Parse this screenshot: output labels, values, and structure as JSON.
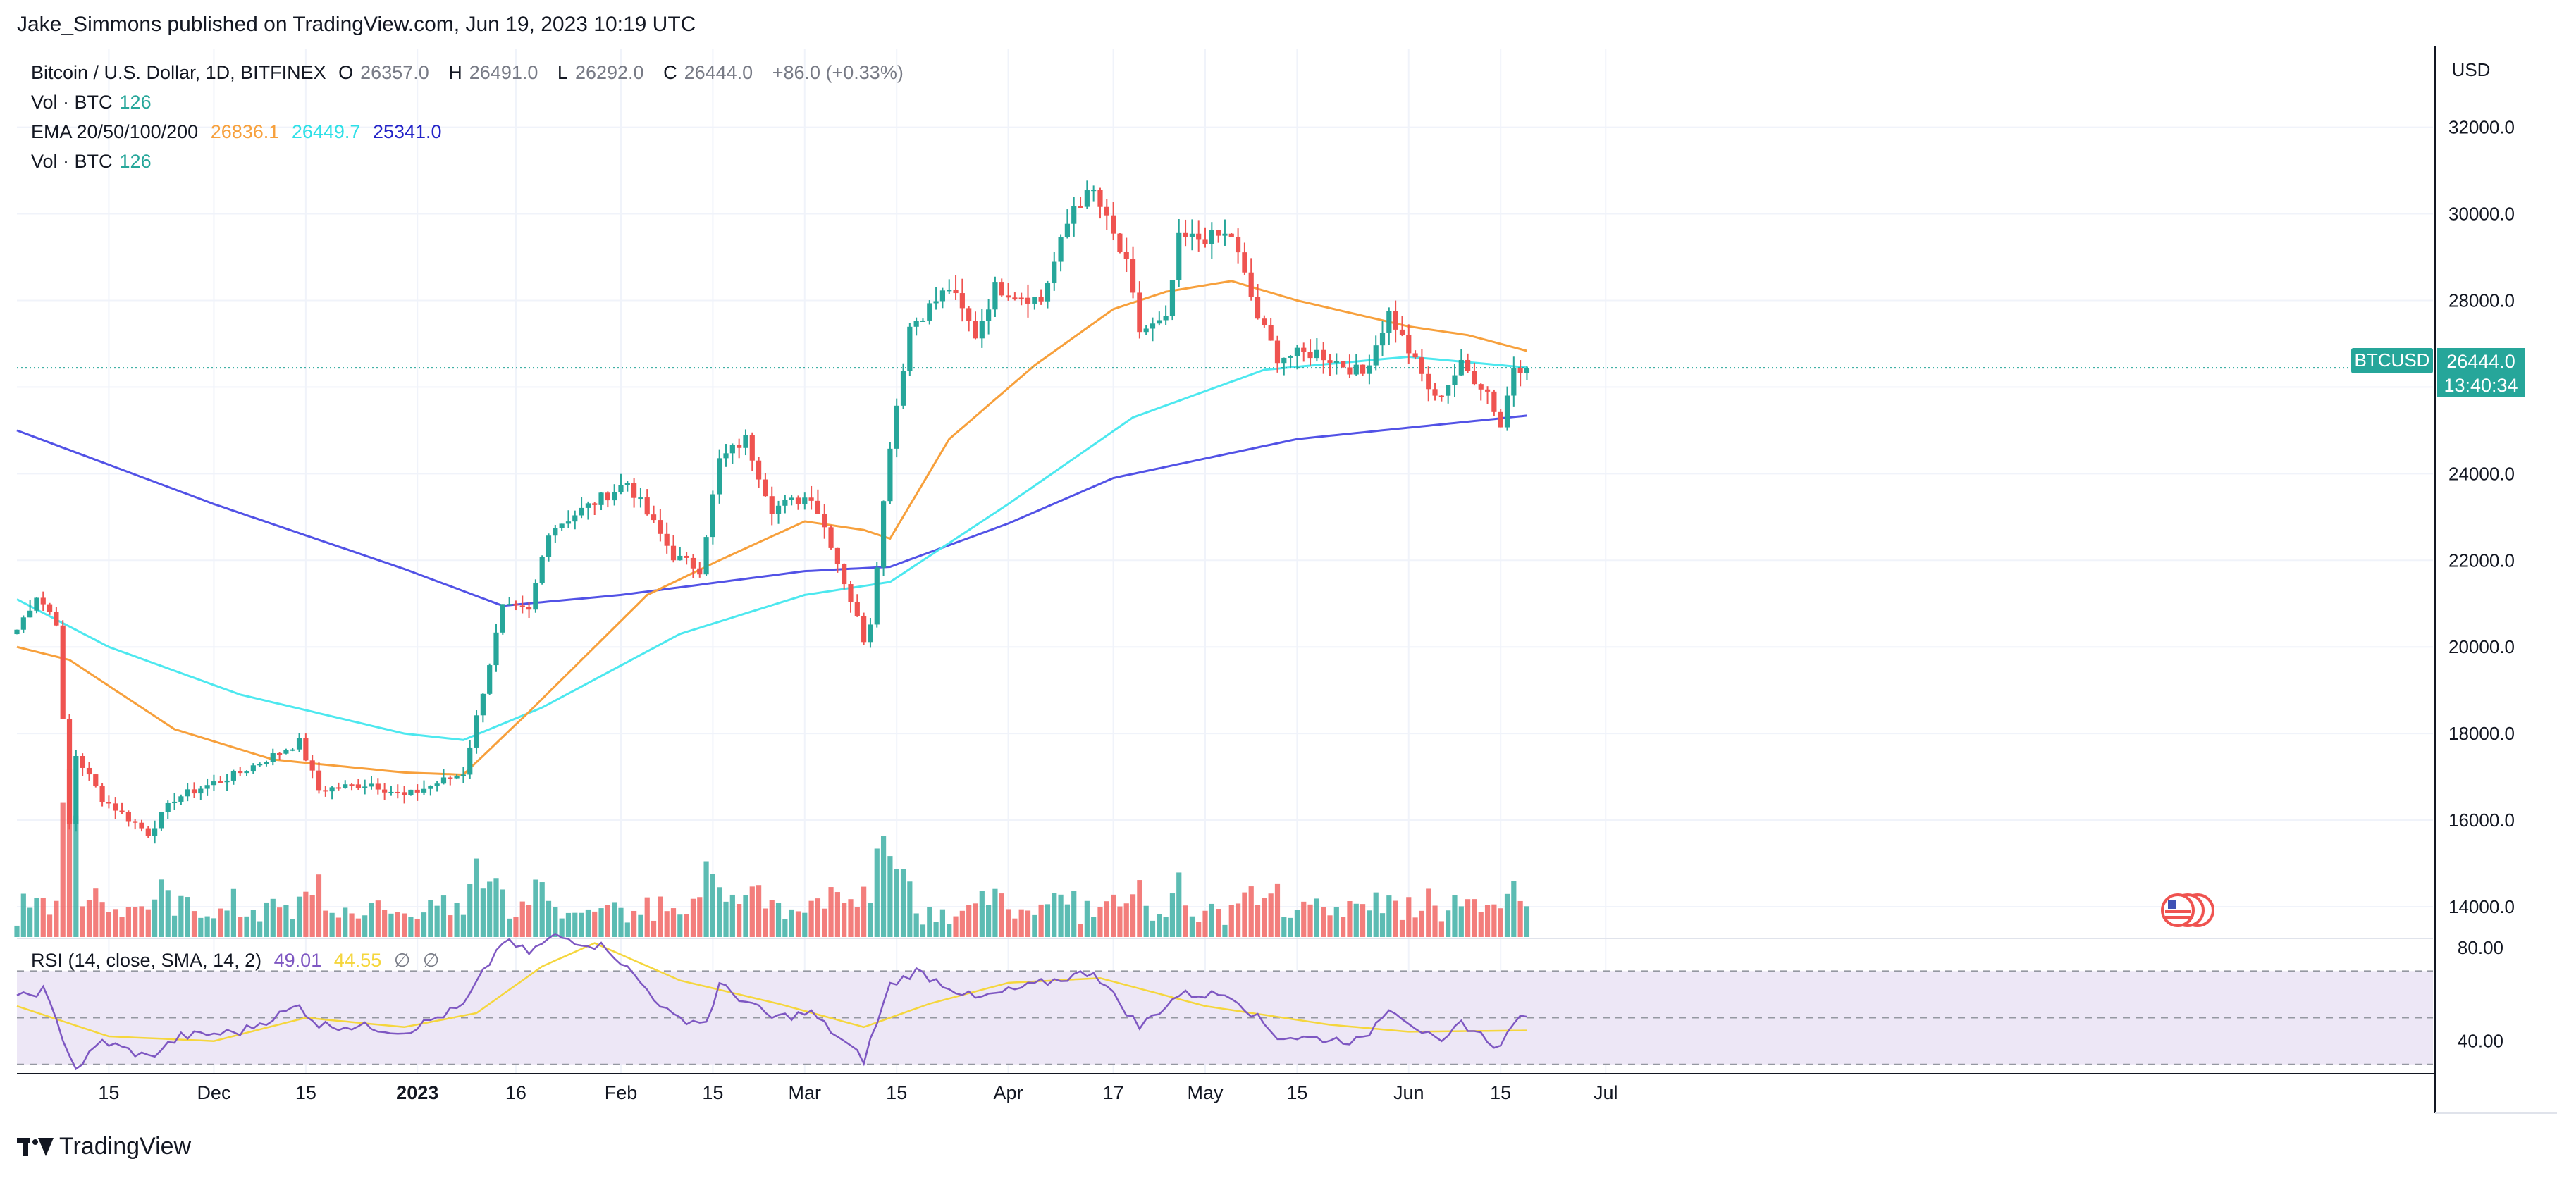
{
  "publisher_line": "Jake_Simmons published on TradingView.com, Jun 19, 2023 10:19 UTC",
  "legend": {
    "symbol": "Bitcoin / U.S. Dollar, 1D, BITFINEX",
    "ohlc": [
      {
        "k": "O",
        "v": "26357.0"
      },
      {
        "k": "H",
        "v": "26491.0"
      },
      {
        "k": "L",
        "v": "26292.0"
      },
      {
        "k": "C",
        "v": "26444.0"
      }
    ],
    "change": "+86.0 (+0.33%)",
    "vol_label": "Vol · BTC",
    "vol_value": "126",
    "ema_label": "EMA 20/50/100/200",
    "ema_values": [
      "26836.1",
      "26449.7",
      "25341.0"
    ],
    "vol2_label": "Vol · BTC",
    "vol2_value": "126"
  },
  "rsi_legend": {
    "label": "RSI (14, close, SMA, 14, 2)",
    "rsi": "49.01",
    "sma": "44.55",
    "na1": "∅",
    "na2": "∅"
  },
  "price_badge": {
    "symbol": "BTCUSD",
    "price": "26444.0",
    "countdown": "13:40:34"
  },
  "footer_brand": "TradingView",
  "colors": {
    "up": "#26a69a",
    "down": "#ef5350",
    "ema20": "#f7a03c",
    "ema50": "#4de8ef",
    "ema200": "#5252e6",
    "rsi": "#7e57c2",
    "rsi_sma": "#f5d63d",
    "rsi_band": "#ede7f6"
  },
  "chart_data": {
    "type": "candlestick",
    "title": "Bitcoin / U.S. Dollar, 1D, BITFINEX",
    "y_axis": {
      "unit": "USD",
      "ticks": [
        14000,
        16000,
        18000,
        20000,
        22000,
        24000,
        26000,
        28000,
        30000,
        32000
      ],
      "tick_labels": [
        "14000.0",
        "16000.0",
        "18000.0",
        "20000.0",
        "22000.0",
        "24000.0",
        "26000.0",
        "28000.0",
        "30000.0",
        "32000.0"
      ],
      "range": [
        13300,
        33800
      ]
    },
    "x_axis": {
      "start_date": "2022-11-01",
      "labels": [
        {
          "date": "2022-11-15",
          "text": "15"
        },
        {
          "date": "2022-12-01",
          "text": "Dec"
        },
        {
          "date": "2022-12-15",
          "text": "15"
        },
        {
          "date": "2023-01-01",
          "text": "2023"
        },
        {
          "date": "2023-01-16",
          "text": "16"
        },
        {
          "date": "2023-02-01",
          "text": "Feb"
        },
        {
          "date": "2023-02-15",
          "text": "15"
        },
        {
          "date": "2023-03-01",
          "text": "Mar"
        },
        {
          "date": "2023-03-15",
          "text": "15"
        },
        {
          "date": "2023-04-01",
          "text": "Apr"
        },
        {
          "date": "2023-04-17",
          "text": "17"
        },
        {
          "date": "2023-05-01",
          "text": "May"
        },
        {
          "date": "2023-05-15",
          "text": "15"
        },
        {
          "date": "2023-06-01",
          "text": "Jun"
        },
        {
          "date": "2023-06-15",
          "text": "15"
        },
        {
          "date": "2023-07-01",
          "text": "Jul"
        }
      ]
    },
    "price_keypoints": [
      {
        "date": "2022-11-01",
        "close": 20400
      },
      {
        "date": "2022-11-04",
        "close": 21200
      },
      {
        "date": "2022-11-07",
        "close": 20600
      },
      {
        "date": "2022-11-09",
        "close": 15900
      },
      {
        "date": "2022-11-10",
        "close": 17500
      },
      {
        "date": "2022-11-14",
        "close": 16500
      },
      {
        "date": "2022-11-21",
        "close": 15700
      },
      {
        "date": "2022-11-25",
        "close": 16500
      },
      {
        "date": "2022-12-05",
        "close": 17100
      },
      {
        "date": "2022-12-14",
        "close": 17800
      },
      {
        "date": "2022-12-17",
        "close": 16700
      },
      {
        "date": "2022-12-25",
        "close": 16850
      },
      {
        "date": "2022-12-30",
        "close": 16550
      },
      {
        "date": "2023-01-08",
        "close": 17100
      },
      {
        "date": "2023-01-14",
        "close": 20900
      },
      {
        "date": "2023-01-18",
        "close": 20800
      },
      {
        "date": "2023-01-21",
        "close": 22700
      },
      {
        "date": "2023-02-02",
        "close": 23800
      },
      {
        "date": "2023-02-09",
        "close": 22100
      },
      {
        "date": "2023-02-13",
        "close": 21800
      },
      {
        "date": "2023-02-16",
        "close": 24300
      },
      {
        "date": "2023-02-20",
        "close": 24800
      },
      {
        "date": "2023-02-24",
        "close": 23200
      },
      {
        "date": "2023-03-02",
        "close": 23500
      },
      {
        "date": "2023-03-05",
        "close": 22400
      },
      {
        "date": "2023-03-10",
        "close": 20200
      },
      {
        "date": "2023-03-11",
        "close": 20600
      },
      {
        "date": "2023-03-14",
        "close": 24700
      },
      {
        "date": "2023-03-17",
        "close": 27400
      },
      {
        "date": "2023-03-23",
        "close": 28300
      },
      {
        "date": "2023-03-27",
        "close": 27200
      },
      {
        "date": "2023-03-30",
        "close": 28300
      },
      {
        "date": "2023-04-06",
        "close": 28000
      },
      {
        "date": "2023-04-11",
        "close": 30200
      },
      {
        "date": "2023-04-14",
        "close": 30500
      },
      {
        "date": "2023-04-19",
        "close": 28800
      },
      {
        "date": "2023-04-21",
        "close": 27300
      },
      {
        "date": "2023-04-25",
        "close": 27500
      },
      {
        "date": "2023-04-27",
        "close": 29400
      },
      {
        "date": "2023-05-05",
        "close": 29500
      },
      {
        "date": "2023-05-09",
        "close": 27600
      },
      {
        "date": "2023-05-12",
        "close": 26700
      },
      {
        "date": "2023-05-18",
        "close": 26800
      },
      {
        "date": "2023-05-25",
        "close": 26300
      },
      {
        "date": "2023-05-29",
        "close": 27700
      },
      {
        "date": "2023-06-05",
        "close": 25700
      },
      {
        "date": "2023-06-09",
        "close": 26500
      },
      {
        "date": "2023-06-13",
        "close": 25900
      },
      {
        "date": "2023-06-15",
        "close": 25100
      },
      {
        "date": "2023-06-17",
        "close": 26500
      },
      {
        "date": "2023-06-19",
        "close": 26444
      }
    ],
    "ema20_keypoints": [
      {
        "date": "2022-11-01",
        "v": 20000
      },
      {
        "date": "2022-11-09",
        "v": 19700
      },
      {
        "date": "2022-11-25",
        "v": 18100
      },
      {
        "date": "2022-12-10",
        "v": 17400
      },
      {
        "date": "2022-12-30",
        "v": 17100
      },
      {
        "date": "2023-01-08",
        "v": 17050
      },
      {
        "date": "2023-01-18",
        "v": 18500
      },
      {
        "date": "2023-02-05",
        "v": 21200
      },
      {
        "date": "2023-02-16",
        "v": 22000
      },
      {
        "date": "2023-03-01",
        "v": 22900
      },
      {
        "date": "2023-03-10",
        "v": 22700
      },
      {
        "date": "2023-03-14",
        "v": 22500
      },
      {
        "date": "2023-03-23",
        "v": 24800
      },
      {
        "date": "2023-04-05",
        "v": 26500
      },
      {
        "date": "2023-04-17",
        "v": 27800
      },
      {
        "date": "2023-04-25",
        "v": 28200
      },
      {
        "date": "2023-05-05",
        "v": 28450
      },
      {
        "date": "2023-05-15",
        "v": 28000
      },
      {
        "date": "2023-06-01",
        "v": 27400
      },
      {
        "date": "2023-06-10",
        "v": 27200
      },
      {
        "date": "2023-06-19",
        "v": 26836
      }
    ],
    "ema50_keypoints": [
      {
        "date": "2022-11-01",
        "v": 21100
      },
      {
        "date": "2022-11-15",
        "v": 20000
      },
      {
        "date": "2022-12-05",
        "v": 18900
      },
      {
        "date": "2022-12-30",
        "v": 18000
      },
      {
        "date": "2023-01-08",
        "v": 17850
      },
      {
        "date": "2023-01-20",
        "v": 18600
      },
      {
        "date": "2023-02-10",
        "v": 20300
      },
      {
        "date": "2023-03-01",
        "v": 21200
      },
      {
        "date": "2023-03-14",
        "v": 21500
      },
      {
        "date": "2023-04-01",
        "v": 23300
      },
      {
        "date": "2023-04-20",
        "v": 25300
      },
      {
        "date": "2023-05-10",
        "v": 26400
      },
      {
        "date": "2023-06-01",
        "v": 26700
      },
      {
        "date": "2023-06-19",
        "v": 26450
      }
    ],
    "ema200_keypoints": [
      {
        "date": "2022-11-01",
        "v": 25000
      },
      {
        "date": "2022-12-01",
        "v": 23300
      },
      {
        "date": "2022-12-30",
        "v": 21800
      },
      {
        "date": "2023-01-14",
        "v": 20950
      },
      {
        "date": "2023-02-01",
        "v": 21200
      },
      {
        "date": "2023-03-01",
        "v": 21750
      },
      {
        "date": "2023-03-14",
        "v": 21850
      },
      {
        "date": "2023-04-01",
        "v": 22850
      },
      {
        "date": "2023-04-17",
        "v": 23900
      },
      {
        "date": "2023-05-15",
        "v": 24800
      },
      {
        "date": "2023-06-19",
        "v": 25341
      }
    ],
    "rsi": {
      "ticks": [
        40,
        80
      ],
      "band": [
        30,
        70
      ],
      "mid": 50,
      "range": [
        26,
        84
      ],
      "keypoints": [
        {
          "date": "2022-11-01",
          "v": 58
        },
        {
          "date": "2022-11-05",
          "v": 62
        },
        {
          "date": "2022-11-10",
          "v": 28
        },
        {
          "date": "2022-11-14",
          "v": 40
        },
        {
          "date": "2022-11-21",
          "v": 33
        },
        {
          "date": "2022-11-26",
          "v": 42
        },
        {
          "date": "2022-12-05",
          "v": 44
        },
        {
          "date": "2022-12-14",
          "v": 55
        },
        {
          "date": "2022-12-17",
          "v": 47
        },
        {
          "date": "2022-12-25",
          "v": 46
        },
        {
          "date": "2022-12-30",
          "v": 44
        },
        {
          "date": "2023-01-08",
          "v": 55
        },
        {
          "date": "2023-01-14",
          "v": 83
        },
        {
          "date": "2023-01-18",
          "v": 78
        },
        {
          "date": "2023-01-22",
          "v": 85
        },
        {
          "date": "2023-01-30",
          "v": 80
        },
        {
          "date": "2023-02-09",
          "v": 50
        },
        {
          "date": "2023-02-14",
          "v": 48
        },
        {
          "date": "2023-02-16",
          "v": 64
        },
        {
          "date": "2023-02-24",
          "v": 50
        },
        {
          "date": "2023-03-02",
          "v": 52
        },
        {
          "date": "2023-03-10",
          "v": 32
        },
        {
          "date": "2023-03-14",
          "v": 64
        },
        {
          "date": "2023-03-18",
          "v": 70
        },
        {
          "date": "2023-03-27",
          "v": 58
        },
        {
          "date": "2023-04-11",
          "v": 68
        },
        {
          "date": "2023-04-14",
          "v": 70
        },
        {
          "date": "2023-04-21",
          "v": 46
        },
        {
          "date": "2023-04-27",
          "v": 60
        },
        {
          "date": "2023-05-05",
          "v": 60
        },
        {
          "date": "2023-05-12",
          "v": 42
        },
        {
          "date": "2023-05-25",
          "v": 40
        },
        {
          "date": "2023-05-29",
          "v": 55
        },
        {
          "date": "2023-06-06",
          "v": 38
        },
        {
          "date": "2023-06-09",
          "v": 48
        },
        {
          "date": "2023-06-15",
          "v": 37
        },
        {
          "date": "2023-06-17",
          "v": 49
        },
        {
          "date": "2023-06-19",
          "v": 49.01
        }
      ],
      "sma_keypoints": [
        {
          "date": "2022-11-01",
          "v": 55
        },
        {
          "date": "2022-11-15",
          "v": 42
        },
        {
          "date": "2022-12-01",
          "v": 40
        },
        {
          "date": "2022-12-15",
          "v": 50
        },
        {
          "date": "2022-12-30",
          "v": 46
        },
        {
          "date": "2023-01-10",
          "v": 52
        },
        {
          "date": "2023-01-20",
          "v": 72
        },
        {
          "date": "2023-01-28",
          "v": 82
        },
        {
          "date": "2023-02-10",
          "v": 66
        },
        {
          "date": "2023-02-25",
          "v": 56
        },
        {
          "date": "2023-03-10",
          "v": 46
        },
        {
          "date": "2023-03-20",
          "v": 56
        },
        {
          "date": "2023-04-01",
          "v": 65
        },
        {
          "date": "2023-04-15",
          "v": 67
        },
        {
          "date": "2023-05-01",
          "v": 55
        },
        {
          "date": "2023-05-20",
          "v": 47
        },
        {
          "date": "2023-06-01",
          "v": 44
        },
        {
          "date": "2023-06-19",
          "v": 44.55
        }
      ]
    }
  }
}
